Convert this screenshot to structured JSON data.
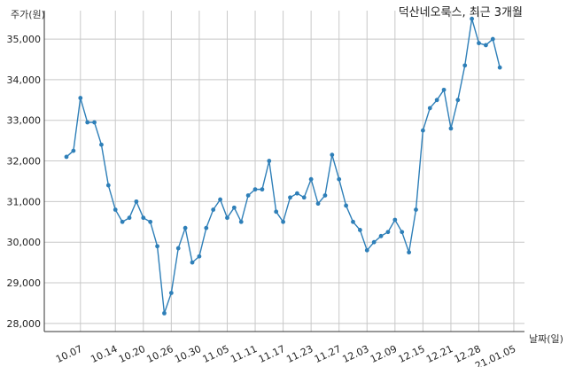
{
  "chart_data": {
    "type": "line",
    "title": "덕산네오룩스, 최근 3개월",
    "xlabel": "날짜(일)",
    "ylabel": "주가(원)",
    "ylim": [
      27800,
      35700
    ],
    "grid": true,
    "yticks": [
      28000,
      29000,
      30000,
      31000,
      32000,
      33000,
      34000,
      35000
    ],
    "ytick_labels": [
      "28,000",
      "29,000",
      "30,000",
      "31,000",
      "32,000",
      "33,000",
      "34,000",
      "35,000"
    ],
    "xtick_labels": [
      "10.07",
      "10.14",
      "10.20",
      "10.26",
      "10.30",
      "11.05",
      "11.11",
      "11.17",
      "11.23",
      "11.27",
      "12.03",
      "12.09",
      "12.15",
      "12.21",
      "12.28",
      "21.01.05"
    ],
    "xtick_index": [
      2,
      7,
      11,
      15,
      19,
      23,
      27,
      31,
      35,
      39,
      43,
      47,
      51,
      55,
      59,
      64
    ],
    "series": [
      {
        "color": "#2e7fb8",
        "values": [
          32100,
          32250,
          33550,
          32950,
          32950,
          32400,
          31400,
          30800,
          30500,
          30600,
          31000,
          30600,
          30500,
          29900,
          28250,
          28750,
          29850,
          30350,
          29500,
          29650,
          30350,
          30800,
          31050,
          30600,
          30850,
          30500,
          31150,
          31300,
          31300,
          32000,
          30750,
          30500,
          31100,
          31200,
          31100,
          31550,
          30950,
          31150,
          32150,
          31550,
          30900,
          30500,
          30300,
          29800,
          30000,
          30150,
          30250,
          30550,
          30250,
          29750,
          30800,
          32750,
          33300,
          33500,
          33750,
          32800,
          33500,
          34350,
          35500,
          34900,
          34850,
          35000,
          34300
        ]
      }
    ]
  }
}
